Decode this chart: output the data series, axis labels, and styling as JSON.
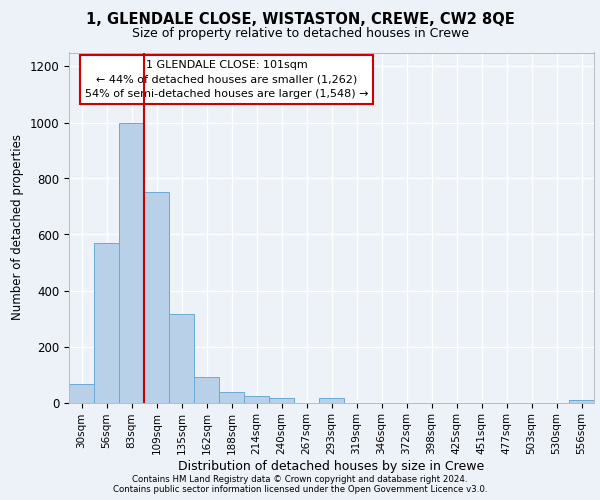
{
  "title1": "1, GLENDALE CLOSE, WISTASTON, CREWE, CW2 8QE",
  "title2": "Size of property relative to detached houses in Crewe",
  "xlabel": "Distribution of detached houses by size in Crewe",
  "ylabel": "Number of detached properties",
  "bar_labels": [
    "30sqm",
    "56sqm",
    "83sqm",
    "109sqm",
    "135sqm",
    "162sqm",
    "188sqm",
    "214sqm",
    "240sqm",
    "267sqm",
    "293sqm",
    "319sqm",
    "346sqm",
    "372sqm",
    "398sqm",
    "425sqm",
    "451sqm",
    "477sqm",
    "503sqm",
    "530sqm",
    "556sqm"
  ],
  "bar_values": [
    65,
    570,
    1000,
    750,
    315,
    90,
    38,
    25,
    15,
    0,
    15,
    0,
    0,
    0,
    0,
    0,
    0,
    0,
    0,
    0,
    10
  ],
  "bar_color": "#b8d0e8",
  "bar_edgecolor": "#6aaad4",
  "red_line_x": 2.5,
  "annotation_text": "1 GLENDALE CLOSE: 101sqm\n← 44% of detached houses are smaller (1,262)\n54% of semi-detached houses are larger (1,548) →",
  "annotation_box_color": "#ffffff",
  "annotation_box_edgecolor": "#cc0000",
  "ylim": [
    0,
    1250
  ],
  "yticks": [
    0,
    200,
    400,
    600,
    800,
    1000,
    1200
  ],
  "background_color": "#edf1f8",
  "grid_color": "#ffffff",
  "footer1": "Contains HM Land Registry data © Crown copyright and database right 2024.",
  "footer2": "Contains public sector information licensed under the Open Government Licence v3.0."
}
